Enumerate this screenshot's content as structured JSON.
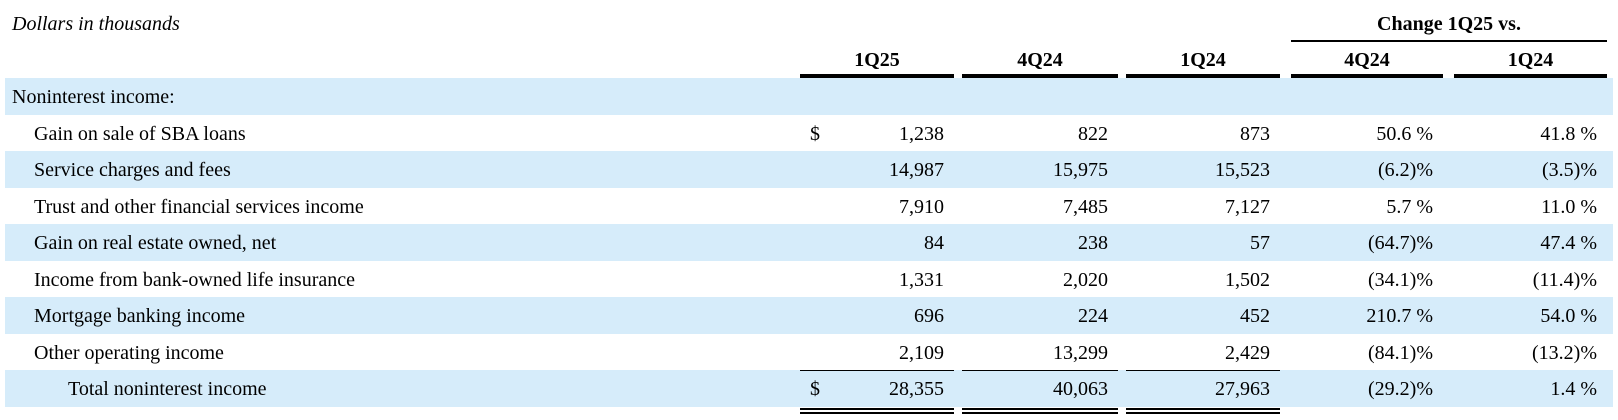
{
  "header": {
    "note": "Dollars in thousands",
    "group": "Change 1Q25 vs.",
    "columns": [
      "1Q25",
      "4Q24",
      "1Q24",
      "4Q24",
      "1Q24"
    ]
  },
  "table": {
    "section": "Noninterest income:",
    "rows": [
      {
        "label": "Gain on sale of SBA loans",
        "currency": "$",
        "cells": [
          "1,238",
          "822",
          "873",
          "50.6 %",
          "41.8 %"
        ]
      },
      {
        "label": "Service charges and fees",
        "cells": [
          "14,987",
          "15,975",
          "15,523",
          "(6.2)%",
          "(3.5)%"
        ]
      },
      {
        "label": "Trust and other financial services income",
        "cells": [
          "7,910",
          "7,485",
          "7,127",
          "5.7 %",
          "11.0 %"
        ]
      },
      {
        "label": "Gain on real estate owned, net",
        "cells": [
          "84",
          "238",
          "57",
          "(64.7)%",
          "47.4 %"
        ]
      },
      {
        "label": "Income from bank-owned life insurance",
        "cells": [
          "1,331",
          "2,020",
          "1,502",
          "(34.1)%",
          "(11.4)%"
        ]
      },
      {
        "label": "Mortgage banking income",
        "cells": [
          "696",
          "224",
          "452",
          "210.7 %",
          "54.0 %"
        ]
      },
      {
        "label": "Other operating income",
        "cells": [
          "2,109",
          "13,299",
          "2,429",
          "(84.1)%",
          "(13.2)%"
        ]
      }
    ],
    "total": {
      "label": "Total noninterest income",
      "currency": "$",
      "cells": [
        "28,355",
        "40,063",
        "27,963",
        "(29.2)%",
        "1.4 %"
      ]
    }
  }
}
